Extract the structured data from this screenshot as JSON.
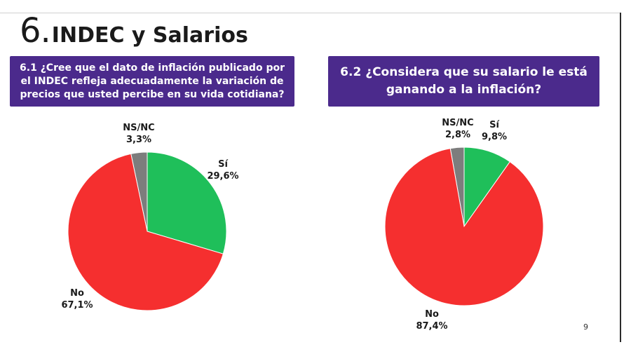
{
  "slide": {
    "section_number": "6.",
    "section_title": "INDEC y Salarios",
    "page_number": "9"
  },
  "colors": {
    "question_bg": "#4b2a8c",
    "si": "#1fbf5a",
    "no": "#f52f2f",
    "nsnc": "#7d7d7d"
  },
  "chart_data": [
    {
      "type": "pie",
      "title": "6.1 ¿Cree que el dato de inflación publicado por el INDEC refleja adecuadamente la variación de precios que usted percibe en su vida cotidiana?",
      "slices": [
        {
          "name": "Sí",
          "value": 29.6,
          "label": "29,6%",
          "color": "#1fbf5a"
        },
        {
          "name": "No",
          "value": 67.1,
          "label": "67,1%",
          "color": "#f52f2f"
        },
        {
          "name": "NS/NC",
          "value": 3.3,
          "label": "3,3%",
          "color": "#7d7d7d"
        }
      ]
    },
    {
      "type": "pie",
      "title": "6.2 ¿Considera que su salario le está ganando a la inflación?",
      "slices": [
        {
          "name": "Sí",
          "value": 9.8,
          "label": "9,8%",
          "color": "#1fbf5a"
        },
        {
          "name": "No",
          "value": 87.4,
          "label": "87,4%",
          "color": "#f52f2f"
        },
        {
          "name": "NS/NC",
          "value": 2.8,
          "label": "2,8%",
          "color": "#7d7d7d"
        }
      ]
    }
  ]
}
